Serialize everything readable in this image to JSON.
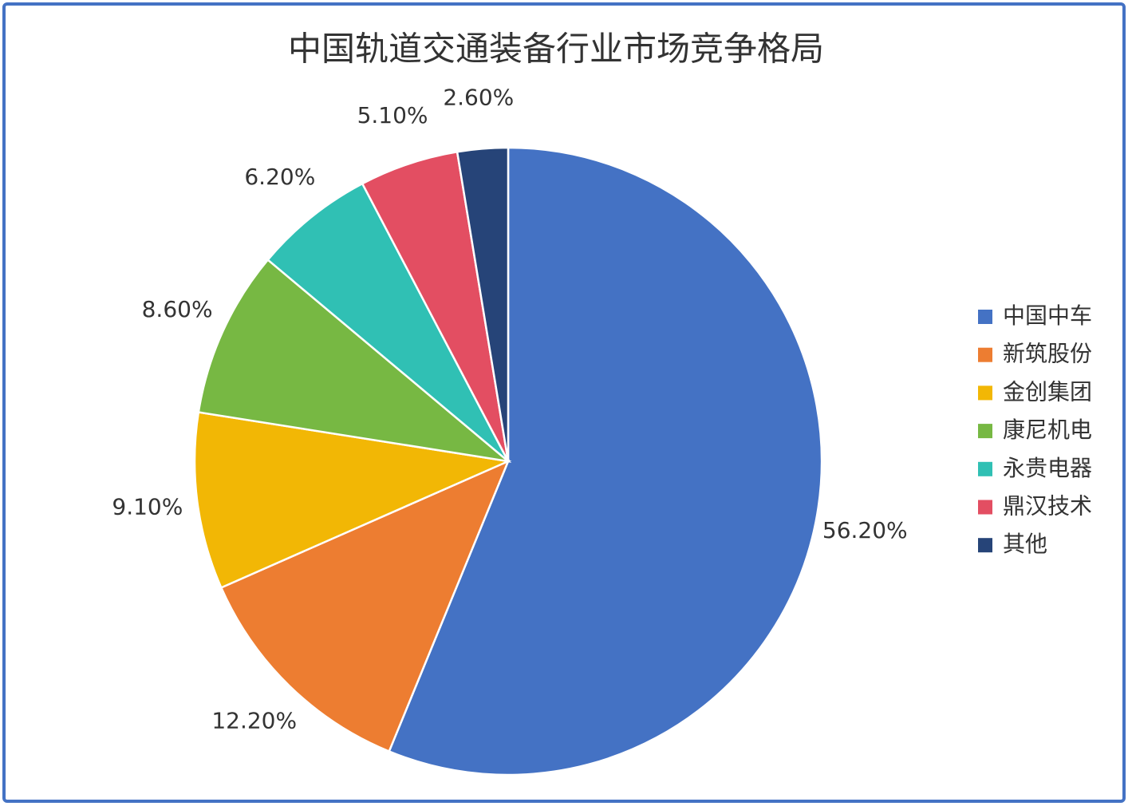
{
  "chart_data": {
    "type": "pie",
    "title": "中国轨道交通装备行业市场竞争格局",
    "categories": [
      "中国中车",
      "新筑股份",
      "金创集团",
      "康尼机电",
      "永贵电器",
      "鼎汉技术",
      "其他"
    ],
    "values": [
      56.2,
      12.2,
      9.1,
      8.6,
      6.2,
      5.1,
      2.6
    ],
    "value_labels": [
      "56.20%",
      "12.20%",
      "9.10%",
      "8.60%",
      "6.20%",
      "5.10%",
      "2.60%"
    ],
    "colors": [
      "#4472c4",
      "#ed7d31",
      "#f2b705",
      "#77b843",
      "#30c0b4",
      "#e34e62",
      "#264478"
    ],
    "legend": "right"
  }
}
